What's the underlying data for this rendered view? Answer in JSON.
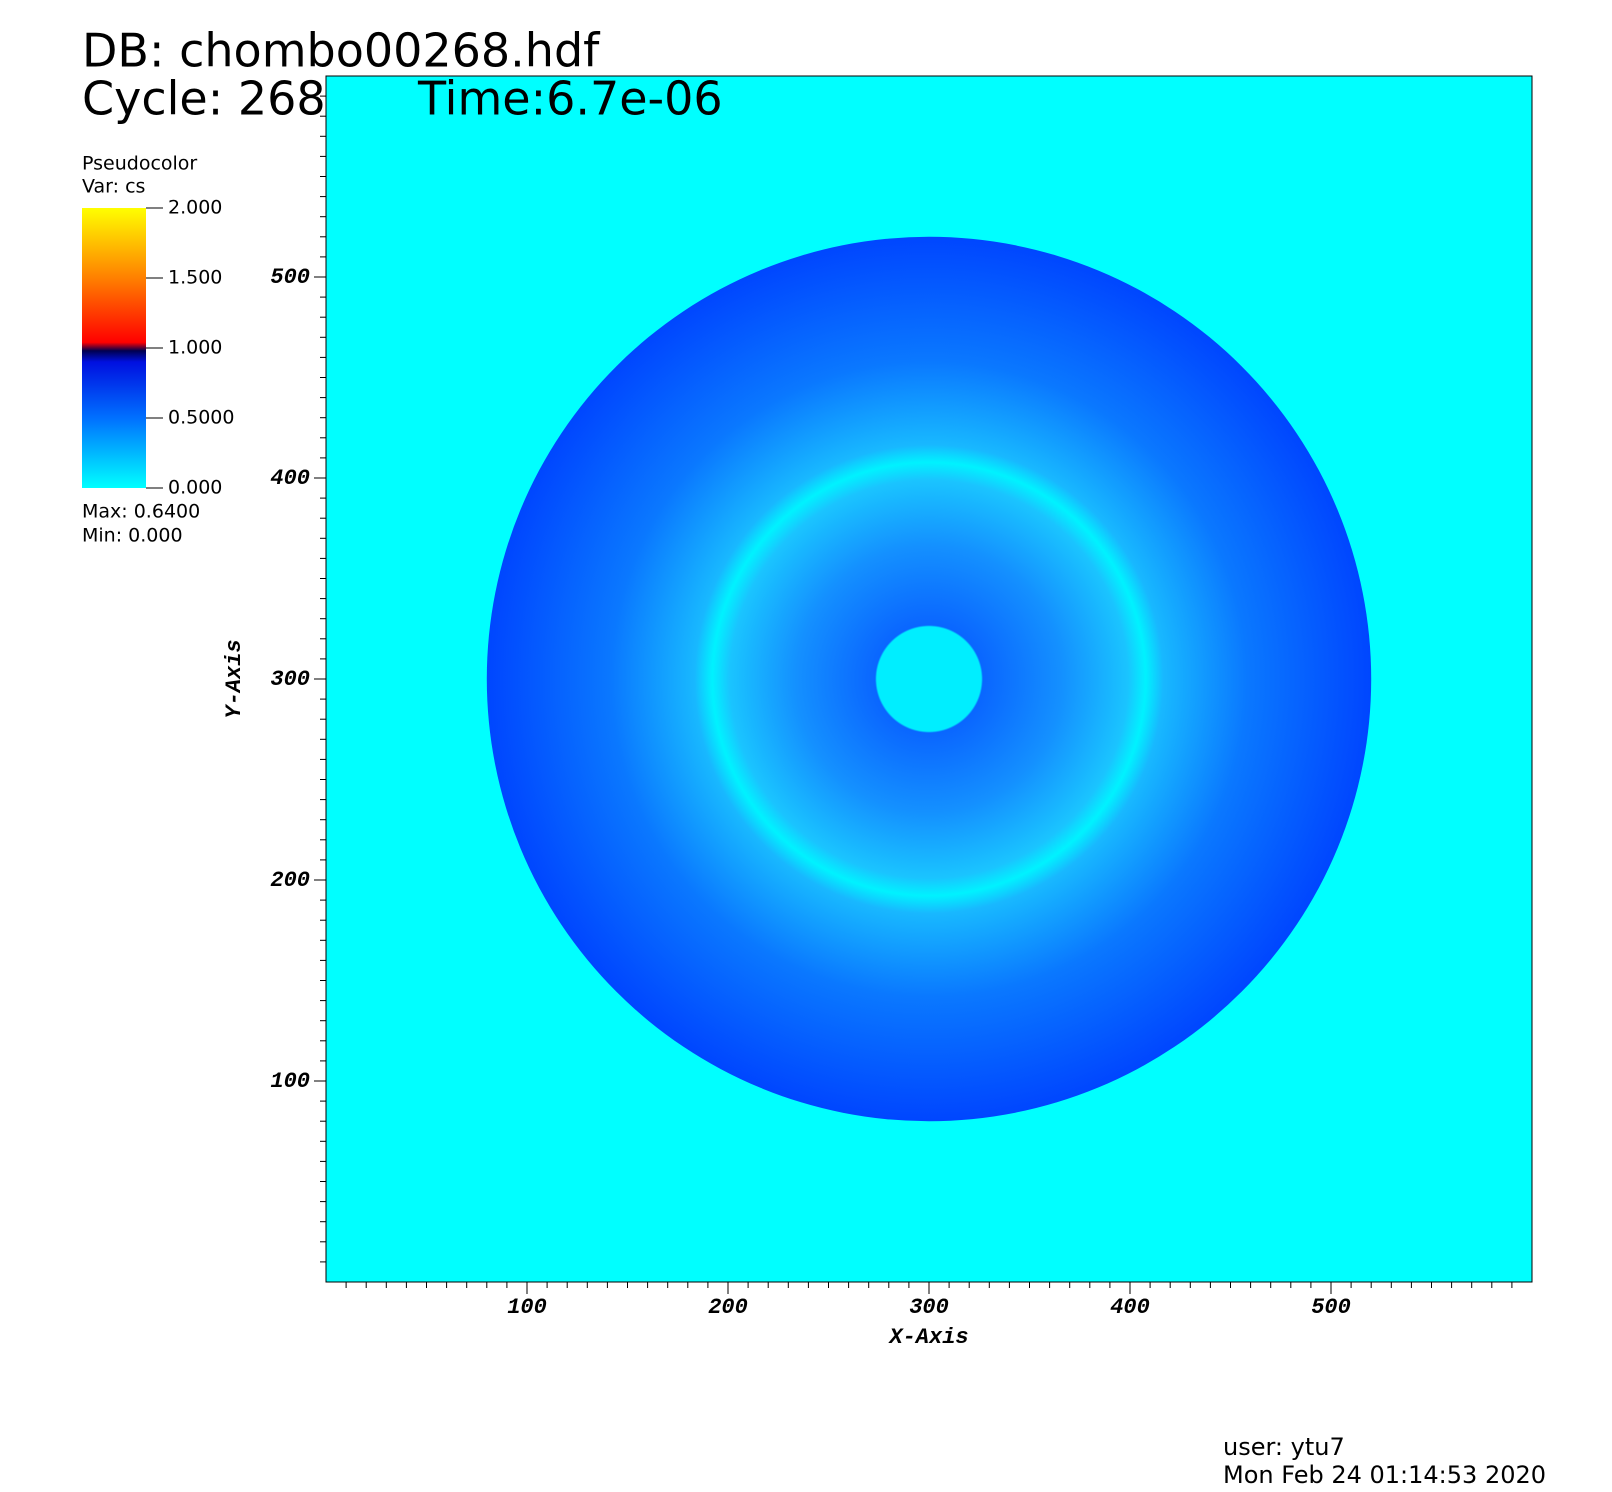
{
  "chart_data": {
    "type": "pseudocolor",
    "title": "DB: chombo00268.hdf",
    "cycle": "Cycle: 268",
    "time": "Time:6.7e-06",
    "legend_title": "Pseudocolor",
    "variable": "Var: cs",
    "colorbar_ticks": [
      {
        "value": 0,
        "label": "0.000"
      },
      {
        "value": 0.5,
        "label": "0.5000"
      },
      {
        "value": 1,
        "label": "1.000"
      },
      {
        "value": 1.5,
        "label": "1.500"
      },
      {
        "value": 2,
        "label": "2.000"
      }
    ],
    "colorbar_lim": [
      0,
      2
    ],
    "max_text": "Max:  0.6400",
    "min_text": "Min:  0.000",
    "xlabel": "X-Axis",
    "ylabel": "Y-Axis",
    "xlim": [
      0,
      600
    ],
    "ylim": [
      0,
      600
    ],
    "xticks": [
      100,
      200,
      300,
      400,
      500
    ],
    "yticks": [
      100,
      200,
      300,
      400,
      500
    ],
    "user": "user: ytu7",
    "date": "Mon Feb 24 01:14:53 2020"
  }
}
